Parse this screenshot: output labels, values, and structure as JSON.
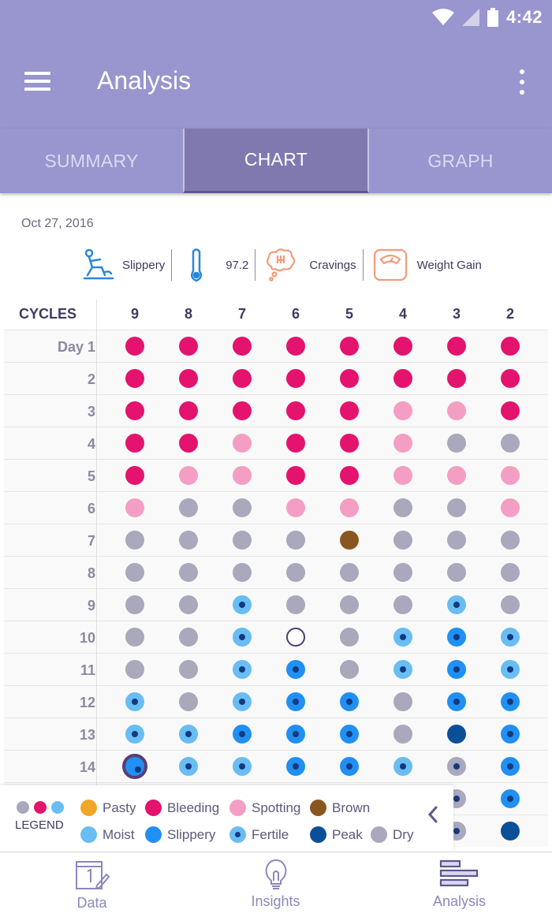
{
  "status": {
    "time": "4:42"
  },
  "header": {
    "title": "Analysis"
  },
  "tabs": [
    {
      "label": "SUMMARY",
      "active": false
    },
    {
      "label": "CHART",
      "active": true
    },
    {
      "label": "GRAPH",
      "active": false
    }
  ],
  "date": "Oct 27, 2016",
  "indicators": [
    {
      "icon": "slippery-person-icon",
      "label": "Slippery"
    },
    {
      "icon": "thermometer-icon",
      "label": "97.2"
    },
    {
      "icon": "cravings-icon",
      "label": "Cravings"
    },
    {
      "icon": "weight-scale-icon",
      "label": "Weight Gain"
    }
  ],
  "grid": {
    "corner_label": "CYCLES",
    "cycles": [
      "9",
      "8",
      "7",
      "6",
      "5",
      "4",
      "3",
      "2"
    ],
    "rows": [
      {
        "label": "Day 1",
        "cells": [
          "bleeding",
          "bleeding",
          "bleeding",
          "bleeding",
          "bleeding",
          "bleeding",
          "bleeding",
          "bleeding"
        ]
      },
      {
        "label": "2",
        "cells": [
          "bleeding",
          "bleeding",
          "bleeding",
          "bleeding",
          "bleeding",
          "bleeding",
          "bleeding",
          "bleeding"
        ]
      },
      {
        "label": "3",
        "cells": [
          "bleeding",
          "bleeding",
          "bleeding",
          "bleeding",
          "bleeding",
          "spotting",
          "spotting",
          "bleeding"
        ]
      },
      {
        "label": "4",
        "cells": [
          "bleeding",
          "bleeding",
          "spotting",
          "bleeding",
          "bleeding",
          "spotting",
          "dry",
          "dry"
        ]
      },
      {
        "label": "5",
        "cells": [
          "bleeding",
          "spotting",
          "spotting",
          "bleeding",
          "bleeding",
          "spotting",
          "spotting",
          "spotting"
        ]
      },
      {
        "label": "6",
        "cells": [
          "spotting",
          "dry",
          "dry",
          "spotting",
          "spotting",
          "dry",
          "dry",
          "spotting"
        ]
      },
      {
        "label": "7",
        "cells": [
          "dry",
          "dry",
          "dry",
          "dry",
          "brown",
          "dry",
          "dry",
          "dry"
        ]
      },
      {
        "label": "8",
        "cells": [
          "dry",
          "dry",
          "dry",
          "dry",
          "dry",
          "dry",
          "dry",
          "dry"
        ]
      },
      {
        "label": "9",
        "cells": [
          "dry",
          "dry",
          "fertile",
          "dry",
          "dry",
          "dry",
          "fertile",
          "dry"
        ]
      },
      {
        "label": "10",
        "cells": [
          "dry",
          "dry",
          "fertile",
          "empty",
          "dry",
          "fertile",
          "slippery-fertile",
          "fertile"
        ]
      },
      {
        "label": "11",
        "cells": [
          "dry",
          "dry",
          "fertile",
          "slippery-fertile",
          "dry",
          "fertile",
          "slippery-fertile",
          "fertile"
        ]
      },
      {
        "label": "12",
        "cells": [
          "fertile",
          "dry",
          "fertile",
          "slippery-fertile",
          "slippery-fertile",
          "dry",
          "slippery-fertile",
          "slippery-fertile"
        ]
      },
      {
        "label": "13",
        "cells": [
          "fertile",
          "fertile",
          "slippery-fertile",
          "slippery-fertile",
          "slippery-fertile",
          "dry",
          "peak",
          "slippery-fertile"
        ]
      },
      {
        "label": "14",
        "cells": [
          "selected",
          "fertile",
          "fertile",
          "slippery-fertile",
          "slippery-fertile",
          "fertile",
          "dry-fertile",
          "slippery-fertile"
        ]
      },
      {
        "label": "",
        "cells": [
          "",
          "",
          "",
          "",
          "",
          "",
          "dry-fertile",
          "slippery-fertile"
        ]
      },
      {
        "label": "",
        "cells": [
          "",
          "",
          "",
          "",
          "",
          "",
          "dry-fertile",
          "peak"
        ]
      }
    ]
  },
  "colors": {
    "bleeding": "#e3136e",
    "spotting": "#f59ec3",
    "dry": "#a9a8bc",
    "brown": "#8a5620",
    "pasty": "#f2a627",
    "moist": "#69bdf3",
    "slippery": "#2090f3",
    "peak": "#0b4f99",
    "fertile_ring": "#69bdf3",
    "fertile_core": "#133a80"
  },
  "legend": {
    "title": "LEGEND",
    "items": [
      {
        "key": "pasty",
        "label": "Pasty"
      },
      {
        "key": "bleeding",
        "label": "Bleeding"
      },
      {
        "key": "spotting",
        "label": "Spotting"
      },
      {
        "key": "brown",
        "label": "Brown"
      },
      {
        "key": "moist",
        "label": "Moist"
      },
      {
        "key": "slippery",
        "label": "Slippery"
      },
      {
        "key": "fertile",
        "label": "Fertile"
      },
      {
        "key": "peak",
        "label": "Peak"
      },
      {
        "key": "dry",
        "label": "Dry"
      }
    ]
  },
  "bottom_nav": [
    {
      "label": "Data",
      "icon": "calendar-edit-icon",
      "active": false
    },
    {
      "label": "Insights",
      "icon": "lightbulb-icon",
      "active": false
    },
    {
      "label": "Analysis",
      "icon": "bars-chart-icon",
      "active": true
    }
  ]
}
